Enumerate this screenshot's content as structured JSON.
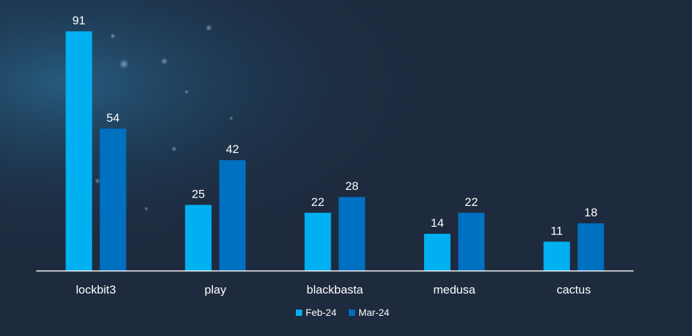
{
  "chart_data": {
    "type": "bar",
    "categories": [
      "lockbit3",
      "play",
      "blackbasta",
      "medusa",
      "cactus"
    ],
    "series": [
      {
        "name": "Feb-24",
        "values": [
          91,
          25,
          22,
          14,
          11
        ],
        "color": "#00b0f0"
      },
      {
        "name": "Mar-24",
        "values": [
          54,
          42,
          28,
          22,
          18
        ],
        "color": "#0070c0"
      }
    ],
    "title": "",
    "xlabel": "",
    "ylabel": "",
    "ylim": [
      0,
      91
    ],
    "grid": false,
    "legend": "bottom-center",
    "background_color": "#1e2a3e",
    "text_color": "#ffffff"
  }
}
